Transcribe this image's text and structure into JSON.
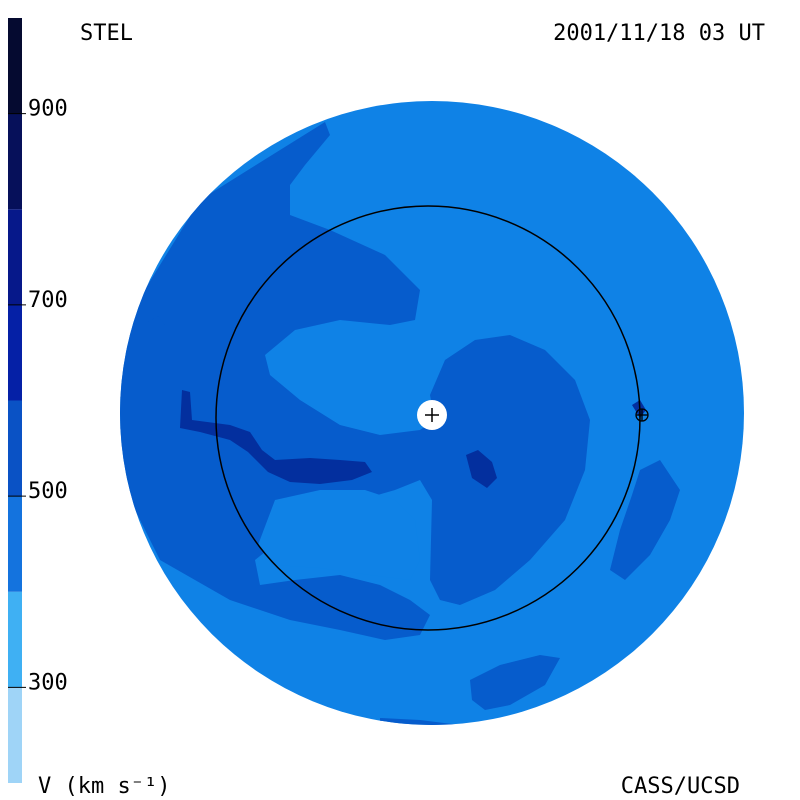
{
  "header": {
    "source_label": "STEL",
    "timestamp": "2001/11/18 03 UT"
  },
  "footer": {
    "units_label": "V (km s⁻¹)",
    "credit": "CASS/UCSD"
  },
  "chart_data": {
    "type": "heatmap",
    "title": "",
    "colorbar": {
      "ticks": [
        300,
        500,
        700,
        900
      ],
      "range": [
        200,
        1000
      ],
      "bands": [
        {
          "min": 200,
          "max": 300,
          "color": "#9fd4f7"
        },
        {
          "min": 300,
          "max": 400,
          "color": "#3fb0f3"
        },
        {
          "min": 400,
          "max": 500,
          "color": "#1473de"
        },
        {
          "min": 500,
          "max": 600,
          "color": "#0a52c5"
        },
        {
          "min": 600,
          "max": 700,
          "color": "#0520a6"
        },
        {
          "min": 700,
          "max": 800,
          "color": "#06188a"
        },
        {
          "min": 800,
          "max": 900,
          "color": "#06105a"
        },
        {
          "min": 900,
          "max": 1000,
          "color": "#050a30"
        }
      ]
    },
    "map_colors": {
      "background_speed": "#0f82e6",
      "mid_speed": "#065ccc",
      "high_speed": "#032f9e",
      "sun_marker": "#ffffff",
      "orbit_line": "#000000"
    },
    "markers": [
      {
        "name": "sun",
        "symbol": "+"
      },
      {
        "name": "earth",
        "symbol": "⊕"
      }
    ]
  }
}
